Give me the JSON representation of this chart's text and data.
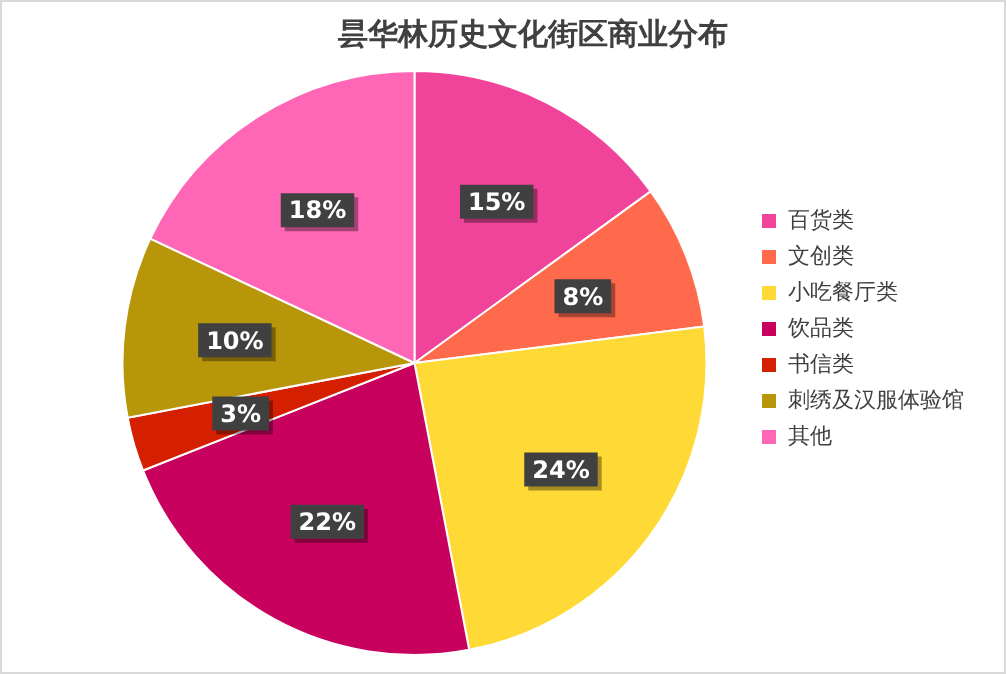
{
  "chart_data": {
    "type": "pie",
    "title": "昙华林历史文化街区商业分布",
    "categories": [
      "百货类",
      "文创类",
      "小吃餐厅类",
      "饮品类",
      "书信类",
      "刺绣及汉服体验馆",
      "其他"
    ],
    "values": [
      15,
      8,
      24,
      22,
      3,
      10,
      18
    ],
    "colors": [
      "#f0439a",
      "#ff6a4d",
      "#ffd935",
      "#c8005e",
      "#d41f00",
      "#b8960a",
      "#ff66b6"
    ],
    "value_labels": [
      "15%",
      "8%",
      "24%",
      "22%",
      "3%",
      "10%",
      "18%"
    ],
    "legend": "right"
  }
}
